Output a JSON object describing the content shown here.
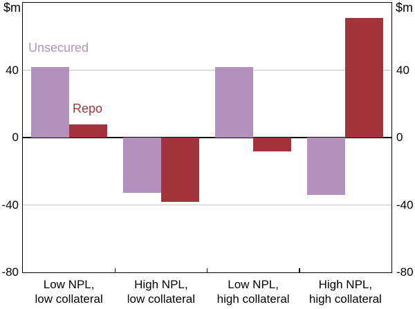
{
  "chart_data": {
    "type": "bar",
    "title": "",
    "unit_label": "$m",
    "categories": [
      "Low NPL,\nlow collateral",
      "High NPL,\nlow collateral",
      "Low NPL,\nhigh collateral",
      "High NPL,\nhigh collateral"
    ],
    "series": [
      {
        "name": "Unsecured",
        "color": "#b391bd",
        "values": [
          42,
          -33,
          42,
          -34
        ]
      },
      {
        "name": "Repo",
        "color": "#a3333a",
        "values": [
          8,
          -38,
          -8,
          71
        ]
      }
    ],
    "ylim": [
      -80,
      80
    ],
    "yticks": [
      40,
      0,
      -40,
      -80
    ],
    "ytick_labels": [
      "40",
      "0",
      "-40",
      "-80"
    ],
    "grid": "horizontal gridlines at 40 and -40, solid black line at 0",
    "grid_color": "#c3c3c3",
    "axis_color": "#000000",
    "legend_position": "inline series labels above first group of bars"
  }
}
